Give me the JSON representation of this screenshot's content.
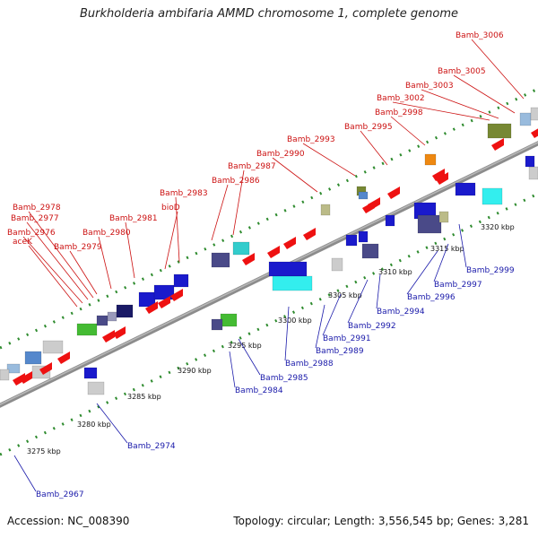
{
  "title": "Burkholderia ambifaria AMMD chromosome 1, complete genome",
  "footer": {
    "accession": "Accession: NC_008390",
    "summary": "Topology: circular; Length: 3,556,545 bp; Genes: 3,281"
  },
  "colors": {
    "forward_label": "#cc1111",
    "reverse_label": "#1a1aaa",
    "backbone": "#8c8c8c",
    "dots": "#2e8b2e"
  },
  "ticks": [
    "3275 kbp",
    "3280 kbp",
    "3285 kbp",
    "3290 kbp",
    "3295 kbp",
    "3300 kbp",
    "3305 kbp",
    "3310 kbp",
    "3315 kbp",
    "3320 kbp"
  ],
  "forward_labels": [
    "Bamb_3006",
    "Bamb_3005",
    "Bamb_3003",
    "Bamb_3002",
    "Bamb_2998",
    "Bamb_2995",
    "Bamb_2993",
    "Bamb_2990",
    "Bamb_2987",
    "Bamb_2986",
    "Bamb_2983",
    "bioD",
    "Bamb_2981",
    "Bamb_2980",
    "Bamb_2979",
    "Bamb_2978",
    "Bamb_2977",
    "Bamb_2976",
    "aceK"
  ],
  "reverse_labels": [
    "Bamb_2967",
    "Bamb_2974",
    "Bamb_2984",
    "Bamb_2985",
    "Bamb_2988",
    "Bamb_2989",
    "Bamb_2991",
    "Bamb_2992",
    "Bamb_2994",
    "Bamb_2996",
    "Bamb_2997",
    "Bamb_2999"
  ]
}
